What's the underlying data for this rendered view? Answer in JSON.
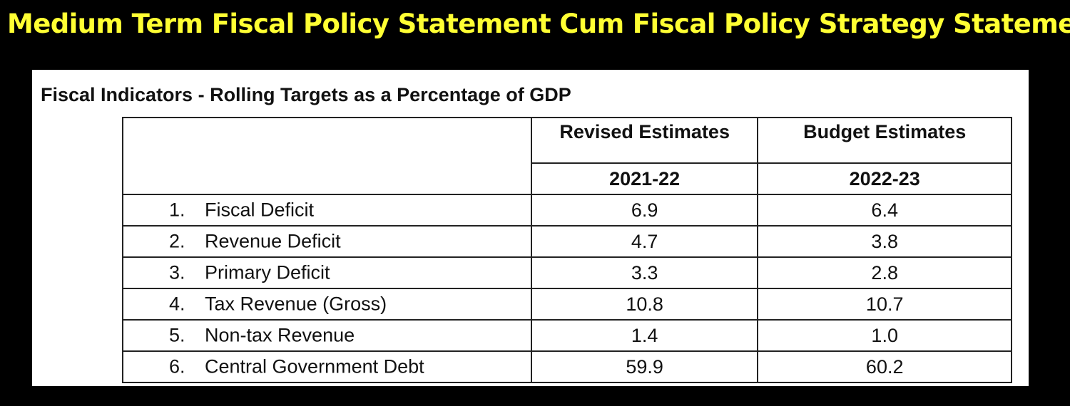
{
  "slide": {
    "title": "Medium Term Fiscal Policy Statement Cum Fiscal Policy Strategy Statement"
  },
  "panel": {
    "heading": "Fiscal Indicators - Rolling Targets as a Percentage of GDP"
  },
  "table": {
    "columns": [
      {
        "header": "Revised Estimates",
        "year": "2021-22"
      },
      {
        "header": "Budget Estimates",
        "year": "2022-23"
      }
    ],
    "rows": [
      {
        "num": "1.",
        "label": "Fiscal Deficit",
        "re": "6.9",
        "be": "6.4"
      },
      {
        "num": "2.",
        "label": "Revenue Deficit",
        "re": "4.7",
        "be": "3.8"
      },
      {
        "num": "3.",
        "label": "Primary Deficit",
        "re": "3.3",
        "be": "2.8"
      },
      {
        "num": "4.",
        "label": "Tax Revenue (Gross)",
        "re": "10.8",
        "be": "10.7"
      },
      {
        "num": "5.",
        "label": "Non-tax Revenue",
        "re": "1.4",
        "be": "1.0"
      },
      {
        "num": "6.",
        "label": "Central Government Debt",
        "re": "59.9",
        "be": "60.2"
      }
    ]
  },
  "colors": {
    "background": "#000000",
    "title": "#ffff33",
    "panel": "#ffffff",
    "text": "#111111"
  }
}
